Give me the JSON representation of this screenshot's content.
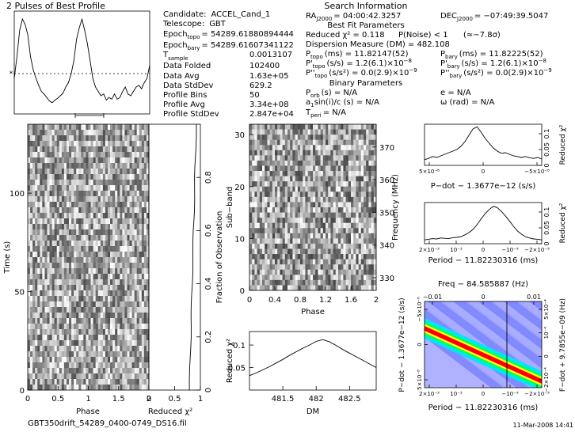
{
  "header": {
    "pulse_title": "2 Pulses of Best Profile",
    "search_title": "Search Information",
    "footer_file": "GBT350drift_54289_0400-0749_DS16.fil",
    "footer_date": "11-Mar-2008 14:41"
  },
  "info_left": [
    {
      "label": "Candidate:",
      "value": "ACCEL_Cand_1"
    },
    {
      "label": "Telescope:",
      "value": "GBT"
    },
    {
      "label": "Epoch",
      "sub": "topo",
      "value": "= 54289.61880894444"
    },
    {
      "label": "Epoch",
      "sub": "bary",
      "value": "= 54289.61607341122"
    },
    {
      "label": "T",
      "sub": "sample",
      "value": "0.0013107"
    },
    {
      "label": "Data Folded",
      "value": "102400"
    },
    {
      "label": "Data Avg",
      "value": "1.63e+05"
    },
    {
      "label": "Data StdDev",
      "value": "629.2"
    },
    {
      "label": "Profile Bins",
      "value": "50"
    },
    {
      "label": "Profile Avg",
      "value": "3.34e+08"
    },
    {
      "label": "Profile StdDev",
      "value": "2.847e+04"
    }
  ],
  "info_right": {
    "ra": "RA",
    "ra_sub": "J2000",
    "ra_value": "= 04:00:42.3257",
    "dec": "DEC",
    "dec_sub": "J2000",
    "dec_value": "= −07:49:39.5047",
    "best_fit_title": "Best Fit Parameters",
    "reduced_chi": "Reduced χ² = 0.118",
    "pnoise": "P(Noise) < 1",
    "sigma": "(≈−7.8σ)",
    "dm": "Dispersion Measure (DM) = 482.108",
    "ptopo": "P",
    "ptopo_sub": "topo",
    "ptopo_value": "(ms)  = 11.82147(52)",
    "pbary": "P",
    "pbary_sub": "bary",
    "pbary_value": "(ms)  = 11.82225(52)",
    "pdtopo": "P'",
    "pdtopo_sub": "topo",
    "pdtopo_value": "(s/s) = 1.2(6.1)×10",
    "pdtopo_exp": "−8",
    "pdbary": "P'",
    "pdbary_sub": "bary",
    "pdbary_value": "(s/s) = 1.2(6.1)×10",
    "pdbary_exp": "−8",
    "pddtopo": "P''",
    "pddtopo_sub": "topo",
    "pddtopo_value": "(s/s²) = 0.0(2.9)×10",
    "pddtopo_exp": "−9",
    "pddbary": "P''",
    "pddbary_sub": "bary",
    "pddbary_value": "(s/s²) = 0.0(2.9)×10",
    "pddbary_exp": "−9",
    "binary_title": "Binary Parameters",
    "porb": "P",
    "porb_sub": "orb",
    "porb_value": "(s) = N/A",
    "e": "e = N/A",
    "asini": "a",
    "asini_sub": "1",
    "asini_value": "sin(i)/c (s) = N/A",
    "omega": "ω (rad) = N/A",
    "tperi": "T",
    "tperi_sub": "peri",
    "tperi_value": "= N/A"
  },
  "chart_data": [
    {
      "type": "line",
      "name": "pulse-profile",
      "title": "2 Pulses of Best Profile",
      "x": [
        0,
        0.04,
        0.08,
        0.12,
        0.16,
        0.2,
        0.24,
        0.28,
        0.32,
        0.36,
        0.4,
        0.44,
        0.48,
        0.52,
        0.56,
        0.6,
        0.64,
        0.68,
        0.72,
        0.76,
        0.8,
        0.84,
        0.88,
        0.92,
        0.96,
        1.0,
        1.04,
        1.08,
        1.12,
        1.16,
        1.2,
        1.24,
        1.28,
        1.32,
        1.36,
        1.4,
        1.44,
        1.48,
        1.52,
        1.56,
        1.6,
        1.64,
        1.68,
        1.72,
        1.76,
        1.8,
        1.84,
        1.88,
        1.92,
        1.96,
        2.0
      ],
      "y": [
        0.3,
        0.55,
        0.85,
        0.98,
        0.92,
        0.8,
        0.55,
        0.4,
        0.3,
        0.22,
        0.15,
        0.12,
        0.08,
        0.04,
        0.02,
        0.05,
        0.07,
        0.1,
        0.13,
        0.2,
        0.25,
        0.35,
        0.5,
        0.75,
        0.88,
        0.98,
        0.85,
        0.7,
        0.5,
        0.3,
        0.2,
        0.15,
        0.1,
        0.12,
        0.05,
        0.08,
        0.06,
        0.12,
        0.06,
        0.08,
        0.15,
        0.2,
        0.12,
        0.1,
        0.15,
        0.2,
        0.22,
        0.18,
        0.25,
        0.3,
        0.45
      ],
      "xlim": [
        0,
        2
      ]
    },
    {
      "type": "heatmap",
      "name": "time-vs-phase",
      "xlabel": "Phase",
      "ylabel": "Time (s)",
      "xlim": [
        0,
        2
      ],
      "ylim": [
        0,
        135
      ],
      "xticks": [
        "0",
        "0.5",
        "1",
        "1.5",
        "2"
      ],
      "yticks": [
        "0",
        "50",
        "100"
      ],
      "rows": 48,
      "cols": 50
    },
    {
      "type": "line",
      "name": "chi-vs-time",
      "xlabel": "Reduced χ²",
      "ylabel_right": "Fraction of Observation",
      "xlim": [
        0,
        1
      ],
      "ylim": [
        0,
        1
      ],
      "xticks": [
        "0",
        "0.5",
        "1"
      ],
      "yticks": [
        "0",
        "0.2",
        "0.4",
        "0.6",
        "0.8"
      ],
      "values": [
        0.02,
        0.06,
        0.1,
        0.14,
        0.18,
        0.22,
        0.26,
        0.3,
        0.34,
        0.38,
        0.42,
        0.46,
        0.5,
        0.54,
        0.58,
        0.62,
        0.66,
        0.7,
        0.74,
        0.78,
        0.82,
        0.86,
        0.9,
        0.94,
        0.98,
        1.0
      ]
    },
    {
      "type": "heatmap",
      "name": "subband-vs-phase",
      "xlabel": "Phase",
      "ylabel": "Sub−band",
      "ylabel_right": "Frequency (MHz)",
      "xlim": [
        0,
        2
      ],
      "ylim": [
        0,
        32
      ],
      "xticks": [
        "0",
        "0.4",
        "0.8",
        "1.2",
        "1.6",
        "2"
      ],
      "yticks": [
        "0",
        "10",
        "20",
        "30"
      ],
      "freq_ticks": [
        "330",
        "340",
        "350",
        "360",
        "370"
      ],
      "rows": 32,
      "cols": 50
    },
    {
      "type": "line",
      "name": "chi-vs-dm",
      "xlabel": "DM",
      "ylabel": "Reduced χ²",
      "xlim": [
        481.0,
        482.9
      ],
      "ylim": [
        0.0,
        0.13
      ],
      "xticks": [
        "481.5",
        "482",
        "482.5"
      ],
      "yticks": [
        "0.05",
        "0.1"
      ],
      "x": [
        481.0,
        481.1,
        481.2,
        481.3,
        481.4,
        481.5,
        481.6,
        481.7,
        481.8,
        481.9,
        482.0,
        482.1,
        482.2,
        482.3,
        482.4,
        482.5,
        482.6,
        482.7,
        482.8,
        482.9
      ],
      "y": [
        0.032,
        0.038,
        0.045,
        0.052,
        0.06,
        0.068,
        0.077,
        0.085,
        0.093,
        0.1,
        0.108,
        0.112,
        0.107,
        0.099,
        0.09,
        0.082,
        0.074,
        0.066,
        0.058,
        0.05
      ]
    },
    {
      "type": "line",
      "name": "chi-vs-pdot",
      "xlabel": "P−dot − 1.3677e−12 (s/s)",
      "ylabel_right": "Reduced χ²",
      "xticks": [
        "5×10⁻⁸",
        "0",
        "−5×10⁻⁸"
      ],
      "yticks": [
        "0",
        "0.05",
        "0.1"
      ],
      "ylim": [
        0,
        0.13
      ],
      "values": [
        0.018,
        0.022,
        0.028,
        0.025,
        0.03,
        0.035,
        0.04,
        0.045,
        0.05,
        0.06,
        0.075,
        0.095,
        0.115,
        0.122,
        0.105,
        0.085,
        0.07,
        0.055,
        0.045,
        0.038,
        0.04,
        0.035,
        0.03,
        0.028,
        0.025,
        0.028,
        0.024,
        0.022,
        0.025,
        0.02
      ]
    },
    {
      "type": "line",
      "name": "chi-vs-period",
      "xlabel": "Period − 11.82230316 (ms)",
      "ylabel_right": "Reduced χ²",
      "xticks": [
        "2×10⁻³",
        "10⁻³",
        "0",
        "−10⁻³",
        "−2×10⁻³"
      ],
      "yticks": [
        "0",
        "0.05",
        "0.1"
      ],
      "ylim": [
        0,
        0.13
      ],
      "values": [
        0.012,
        0.014,
        0.016,
        0.015,
        0.018,
        0.017,
        0.016,
        0.019,
        0.02,
        0.022,
        0.028,
        0.035,
        0.045,
        0.06,
        0.078,
        0.095,
        0.108,
        0.118,
        0.114,
        0.102,
        0.088,
        0.072,
        0.055,
        0.04,
        0.03,
        0.022,
        0.018,
        0.015,
        0.014,
        0.012
      ]
    },
    {
      "type": "heatmap",
      "name": "pdot-vs-period",
      "title": "Freq − 84.585887 (Hz)",
      "xlabel": "Period − 11.82230316 (ms)",
      "ylabel": "P−dot − 1.3677e−12 (s/s)",
      "ylabel_right": "F−dot + 9.7855e−09 (Hz)",
      "xticks": [
        "2×10⁻³",
        "10⁻³",
        "0",
        "−10⁻³",
        "−2×10⁻³"
      ],
      "top_ticks": [
        "−0.01",
        "0",
        "0.01"
      ],
      "yticks": [
        "−5×10⁻⁸",
        "0",
        "5×10⁻⁸"
      ],
      "right_ticks": [
        "5×10⁻⁴",
        "10⁻⁴",
        "0",
        "−2×10⁻⁴"
      ],
      "colors": [
        "#a9a9ff",
        "#5a66ff",
        "#00e5ff",
        "#00ff66",
        "#ffff00",
        "#ff0000"
      ]
    }
  ]
}
